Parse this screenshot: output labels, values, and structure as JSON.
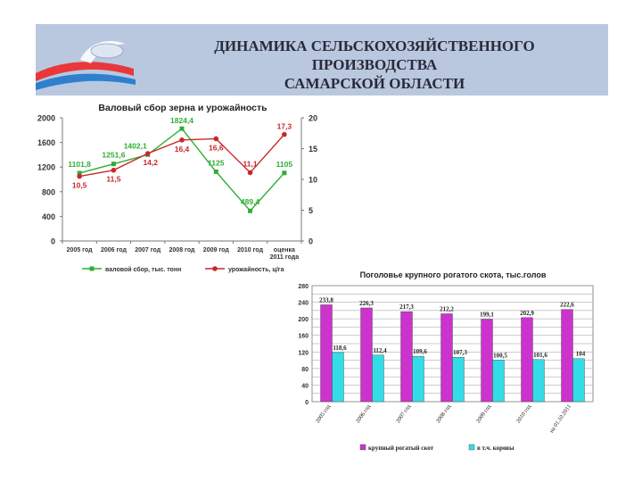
{
  "header": {
    "title_line1": "ДИНАМИКА СЕЛЬСКОХОЗЯЙСТВЕННОГО ПРОИЗВОДСТВА",
    "title_line2": "САМАРСКОЙ ОБЛАСТИ"
  },
  "chart_data": [
    {
      "type": "line",
      "title": "Валовый сбор зерна и урожайность",
      "categories": [
        "2005 год",
        "2006 год",
        "2007 год",
        "2008 год",
        "2009 год",
        "2010 год",
        "оценка 2011 года"
      ],
      "series": [
        {
          "name": "валовой сбор, тыс. тонн",
          "axis": "left",
          "color": "#2eae34",
          "values": [
            1101.8,
            1251.6,
            1402.1,
            1824.4,
            1125,
            489.4,
            1105
          ],
          "labels": [
            "1101,8",
            "1251,6",
            "1402,1",
            "1824,4",
            "1125",
            "489,4",
            "1105"
          ]
        },
        {
          "name": "урожайность, ц/га",
          "axis": "right",
          "color": "#c8282c",
          "values": [
            10.5,
            11.5,
            14.2,
            16.4,
            16.6,
            11.1,
            17.3
          ],
          "labels": [
            "10,5",
            "11,5",
            "14,2",
            "16,4",
            "16,6",
            "11,1",
            "17,3"
          ]
        }
      ],
      "y_left": {
        "min": 0,
        "max": 2000,
        "ticks": [
          "0",
          "400",
          "800",
          "1200",
          "1600",
          "2000"
        ]
      },
      "y_right": {
        "min": 0,
        "max": 20,
        "ticks": [
          "0",
          "5",
          "10",
          "15",
          "20"
        ]
      },
      "grid": false,
      "legend": "bottom"
    },
    {
      "type": "bar",
      "title": "Поголовье крупного рогатого скота, тыс.голов",
      "categories": [
        "2005 год",
        "2006 год",
        "2007 год",
        "2008 год",
        "2009 год",
        "2010 год",
        "на 01.10.2011"
      ],
      "series": [
        {
          "name": "крупный рогатый скот",
          "color": "#cc33cc",
          "values": [
            233.8,
            226.3,
            217.3,
            212.2,
            199.1,
            202.9,
            222.6
          ],
          "labels": [
            "233,8",
            "226,3",
            "217,3",
            "212,2",
            "199,1",
            "202,9",
            "222,6"
          ]
        },
        {
          "name": "в т.ч. коровы",
          "color": "#33dde8",
          "values": [
            118.6,
            112.4,
            109.6,
            107.3,
            100.5,
            101.6,
            104
          ],
          "labels": [
            "118,6",
            "112,4",
            "109,6",
            "107,3",
            "100,5",
            "101,6",
            "104"
          ]
        }
      ],
      "ylim": [
        0,
        280
      ],
      "yticks": [
        "0",
        "20",
        "40",
        "60",
        "80",
        "100",
        "120",
        "140",
        "160",
        "180",
        "200",
        "220",
        "240",
        "260",
        "280"
      ],
      "grid": true,
      "legend": "bottom"
    }
  ]
}
